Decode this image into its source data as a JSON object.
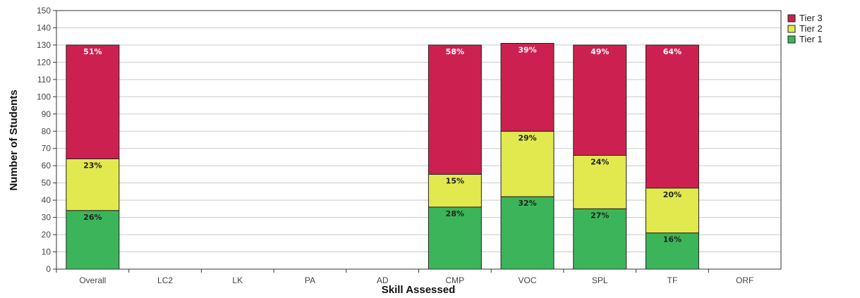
{
  "chart_data": {
    "type": "bar",
    "stacked": true,
    "title": "",
    "xlabel": "Skill Assessed",
    "ylabel": "Number of Students",
    "ylim": [
      0,
      150
    ],
    "ytick_step": 10,
    "grid": true,
    "legend_position": "top-right",
    "categories": [
      "Overall",
      "LC2",
      "LK",
      "PA",
      "AD",
      "CMP",
      "VOC",
      "SPL",
      "TF",
      "ORF"
    ],
    "series": [
      {
        "name": "Tier 1",
        "color": "#3cb55a",
        "values": [
          34,
          null,
          null,
          null,
          null,
          36,
          42,
          35,
          21,
          null
        ],
        "labels": [
          "26%",
          "",
          "",
          "",
          "",
          "28%",
          "32%",
          "27%",
          "16%",
          ""
        ]
      },
      {
        "name": "Tier 2",
        "color": "#e2e94e",
        "values": [
          30,
          null,
          null,
          null,
          null,
          19,
          38,
          31,
          26,
          null
        ],
        "labels": [
          "23%",
          "",
          "",
          "",
          "",
          "15%",
          "29%",
          "24%",
          "20%",
          ""
        ]
      },
      {
        "name": "Tier 3",
        "color": "#cc2150",
        "values": [
          66,
          null,
          null,
          null,
          null,
          75,
          51,
          64,
          83,
          null
        ],
        "labels": [
          "51%",
          "",
          "",
          "",
          "",
          "58%",
          "39%",
          "49%",
          "64%",
          ""
        ]
      }
    ]
  }
}
